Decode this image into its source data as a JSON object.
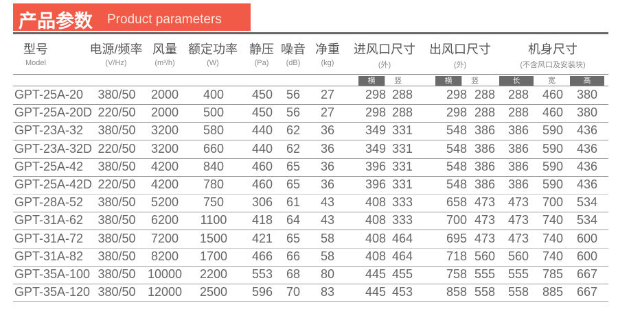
{
  "title": {
    "zh": "产品参数",
    "en": "Product parameters",
    "color": "#f05a47"
  },
  "headers": [
    {
      "zh": "型号",
      "en": "Model"
    },
    {
      "zh": "电源/频率",
      "en": "(V/Hz)"
    },
    {
      "zh": "风量",
      "en": "(m³/h)"
    },
    {
      "zh": "额定功率",
      "en": "(W)"
    },
    {
      "zh": "静压",
      "en": "(Pa)"
    },
    {
      "zh": "噪音",
      "en": "(dB)"
    },
    {
      "zh": "净重",
      "en": "(kg)"
    },
    {
      "zh": "进风口尺寸",
      "en": "(外)"
    },
    {
      "zh": "出风口尺寸",
      "en": "(外)"
    },
    {
      "zh": "机身尺寸",
      "en": "(不含风口及安装块)"
    }
  ],
  "subheaders": {
    "inlet_h": "横",
    "inlet_v": "竖",
    "outlet_h": "横",
    "outlet_v": "竖",
    "length": "长",
    "width": "宽",
    "height": "高"
  },
  "rows": [
    [
      "GPT-25A-20",
      "380/50",
      "2000",
      "400",
      "450",
      "56",
      "27",
      "298",
      "288",
      "298",
      "288",
      "288",
      "460",
      "380"
    ],
    [
      "GPT-25A-20D",
      "220/50",
      "2000",
      "500",
      "450",
      "56",
      "27",
      "298",
      "288",
      "298",
      "288",
      "288",
      "460",
      "380"
    ],
    [
      "GPT-23A-32",
      "380/50",
      "3200",
      "580",
      "440",
      "62",
      "36",
      "349",
      "331",
      "548",
      "386",
      "386",
      "590",
      "436"
    ],
    [
      "GPT-23A-32D",
      "220/50",
      "3200",
      "660",
      "440",
      "62",
      "36",
      "349",
      "331",
      "548",
      "386",
      "386",
      "590",
      "436"
    ],
    [
      "GPT-25A-42",
      "380/50",
      "4200",
      "840",
      "460",
      "65",
      "36",
      "396",
      "331",
      "548",
      "386",
      "386",
      "590",
      "436"
    ],
    [
      "GPT-25A-42D",
      "220/50",
      "4200",
      "780",
      "460",
      "65",
      "36",
      "396",
      "331",
      "548",
      "386",
      "386",
      "590",
      "436"
    ],
    [
      "GPT-28A-52",
      "380/50",
      "5200",
      "750",
      "306",
      "61",
      "43",
      "408",
      "333",
      "658",
      "473",
      "473",
      "700",
      "534"
    ],
    [
      "GPT-31A-62",
      "380/50",
      "6200",
      "1100",
      "418",
      "64",
      "43",
      "408",
      "333",
      "700",
      "473",
      "473",
      "740",
      "534"
    ],
    [
      "GPT-31A-72",
      "380/50",
      "7200",
      "1500",
      "421",
      "65",
      "58",
      "408",
      "464",
      "695",
      "473",
      "473",
      "740",
      "600"
    ],
    [
      "GPT-31A-82",
      "380/50",
      "8200",
      "1700",
      "466",
      "66",
      "58",
      "408",
      "464",
      "718",
      "560",
      "560",
      "740",
      "600"
    ],
    [
      "GPT-35A-100",
      "380/50",
      "10000",
      "2200",
      "553",
      "68",
      "80",
      "445",
      "455",
      "758",
      "555",
      "555",
      "785",
      "667"
    ],
    [
      "GPT-35A-120",
      "380/50",
      "12000",
      "2500",
      "596",
      "70",
      "83",
      "445",
      "453",
      "858",
      "558",
      "558",
      "885",
      "667"
    ]
  ]
}
